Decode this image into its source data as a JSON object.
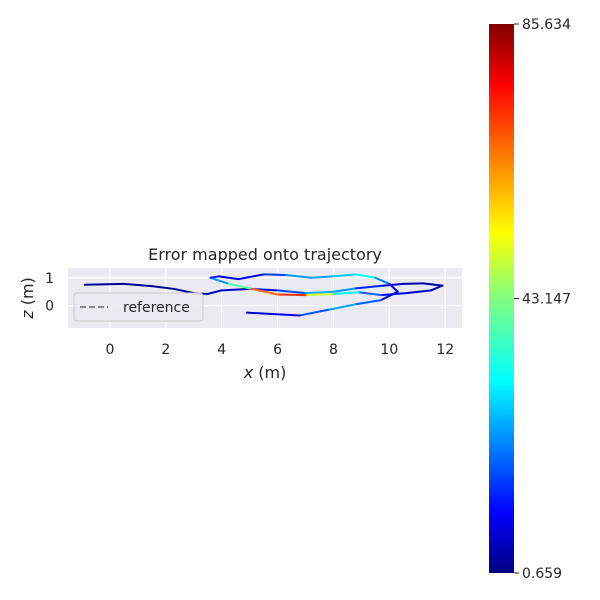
{
  "chart_data": {
    "type": "line",
    "title": "Error mapped onto trajectory",
    "xlabel_var": "x",
    "xlabel_unit": " (m)",
    "ylabel_var": "z",
    "ylabel_unit": " (m)",
    "xlim": [
      -1.5,
      12.6
    ],
    "ylim": [
      -0.8,
      1.35
    ],
    "xticks": [
      "0",
      "2",
      "4",
      "6",
      "8",
      "10",
      "12"
    ],
    "yticks": [
      "0",
      "1"
    ],
    "grid": true,
    "legend": {
      "label": "reference",
      "location": "left"
    },
    "colorbar": {
      "colormap": "jet",
      "min": 0.659,
      "max": 85.634,
      "ticks": [
        "85.634",
        "43.147",
        "0.659"
      ]
    },
    "series": [
      {
        "style": "dashed",
        "color": "#888888",
        "x": [
          -0.9,
          0.5,
          1.5,
          2.3,
          3.0,
          3.5,
          4.0,
          5.0,
          6.0,
          7.0,
          8.0,
          8.8,
          9.8,
          10.5,
          11.2,
          11.9,
          11.5,
          10.6,
          9.7,
          8.9,
          8.0,
          7.0,
          6.0,
          5.0,
          4.2,
          3.6,
          3.9,
          4.6,
          5.5,
          6.3,
          7.2,
          8.0,
          8.8,
          9.5,
          10.0,
          10.3,
          9.7,
          8.8,
          7.8,
          6.8,
          5.8,
          4.9
        ],
        "y": [
          0.75,
          0.78,
          0.7,
          0.6,
          0.45,
          0.42,
          0.55,
          0.6,
          0.55,
          0.45,
          0.5,
          0.62,
          0.72,
          0.78,
          0.8,
          0.72,
          0.55,
          0.45,
          0.38,
          0.48,
          0.42,
          0.38,
          0.4,
          0.62,
          0.8,
          1.0,
          1.05,
          0.95,
          1.12,
          1.1,
          1.0,
          1.05,
          1.12,
          1.0,
          0.78,
          0.5,
          0.2,
          0.05,
          -0.15,
          -0.35,
          -0.3,
          -0.25
        ]
      }
    ],
    "trajectory": {
      "x": [
        -0.9,
        0.5,
        1.5,
        2.3,
        3.0,
        3.5,
        4.0,
        5.0,
        6.0,
        7.0,
        8.0,
        8.8,
        9.8,
        10.5,
        11.2,
        11.9,
        11.5,
        10.6,
        9.7,
        8.9,
        8.0,
        7.0,
        6.0,
        5.0,
        4.2,
        3.6,
        3.9,
        4.6,
        5.5,
        6.3,
        7.2,
        8.0,
        8.8,
        9.5,
        10.0,
        10.3,
        9.7,
        8.8,
        7.8,
        6.8,
        5.8,
        4.9
      ],
      "y": [
        0.75,
        0.78,
        0.7,
        0.6,
        0.45,
        0.42,
        0.55,
        0.6,
        0.55,
        0.45,
        0.5,
        0.62,
        0.72,
        0.78,
        0.8,
        0.72,
        0.55,
        0.45,
        0.38,
        0.48,
        0.42,
        0.38,
        0.4,
        0.62,
        0.8,
        1.0,
        1.05,
        0.95,
        1.12,
        1.1,
        1.0,
        1.05,
        1.12,
        1.0,
        0.78,
        0.5,
        0.2,
        0.05,
        -0.15,
        -0.35,
        -0.3,
        -0.25
      ],
      "error": [
        2,
        3,
        2,
        2,
        3,
        4,
        5,
        8,
        12,
        22,
        30,
        18,
        10,
        6,
        4,
        3,
        6,
        9,
        14,
        24,
        40,
        60,
        82,
        50,
        30,
        18,
        10,
        8,
        12,
        20,
        28,
        22,
        35,
        30,
        15,
        8,
        10,
        28,
        22,
        14,
        8,
        5
      ]
    }
  },
  "colors": {
    "plot_background": "#eaeaf2",
    "grid": "#ffffff",
    "reference": "#888888",
    "text": "#262626"
  }
}
